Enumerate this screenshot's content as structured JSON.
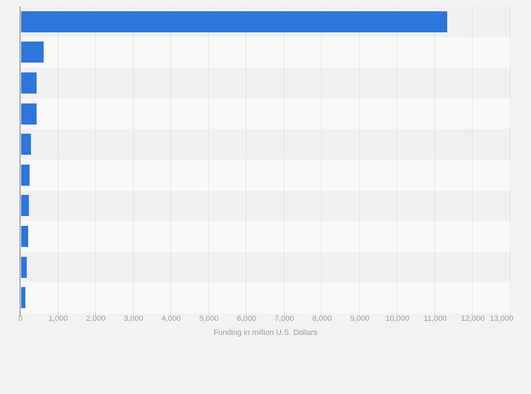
{
  "chart_data": {
    "type": "bar",
    "orientation": "horizontal",
    "categories": [
      "",
      "",
      "",
      "",
      "",
      "",
      "",
      "",
      "",
      ""
    ],
    "values": [
      11300,
      600,
      420,
      420,
      260,
      230,
      210,
      190,
      145,
      120
    ],
    "title": "",
    "xlabel": "Funding in million U.S. Dollars",
    "ylabel": "",
    "xlim": [
      0,
      13000
    ],
    "x_tick_step": 1000,
    "x_tick_labels": [
      "0",
      "1,000",
      "2,000",
      "3,000",
      "4,000",
      "5,000",
      "6,000",
      "7,000",
      "8,000",
      "9,000",
      "10,000",
      "11,000",
      "12,000",
      "13,000"
    ],
    "grid": "vertical-dotted",
    "legend": "none",
    "category_labels_visible": false,
    "row_stripes": true
  },
  "colors": {
    "bar": "#2e76da",
    "background": "#f2f2f2",
    "row_stripe_dark": "#f0f0f1",
    "row_stripe_light": "#f9f9f9",
    "grid_line": "#d4d4d4",
    "axis_line": "#707070",
    "tick_text": "#9b9b9b",
    "axis_title_text": "#999999"
  }
}
